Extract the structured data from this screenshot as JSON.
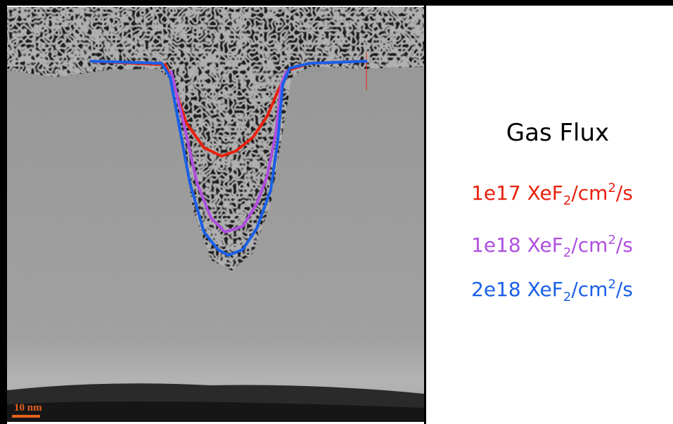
{
  "scale_bar": {
    "label": "10 nm",
    "color": "#e8601c"
  },
  "legend": {
    "title": "Gas Flux",
    "entries": [
      {
        "prefix": "1e17 XeF",
        "sub": "2",
        "mid": "/cm",
        "sup": "2",
        "suffix": "/s",
        "color": "#e8200c"
      },
      {
        "prefix": "1e18 XeF",
        "sub": "2",
        "mid": "/cm",
        "sup": "2",
        "suffix": "/s",
        "color": "#b04ee0"
      },
      {
        "prefix": "2e18 XeF",
        "sub": "2",
        "mid": "/cm",
        "sup": "2",
        "suffix": "/s",
        "color": "#1a5fe8"
      }
    ]
  }
}
